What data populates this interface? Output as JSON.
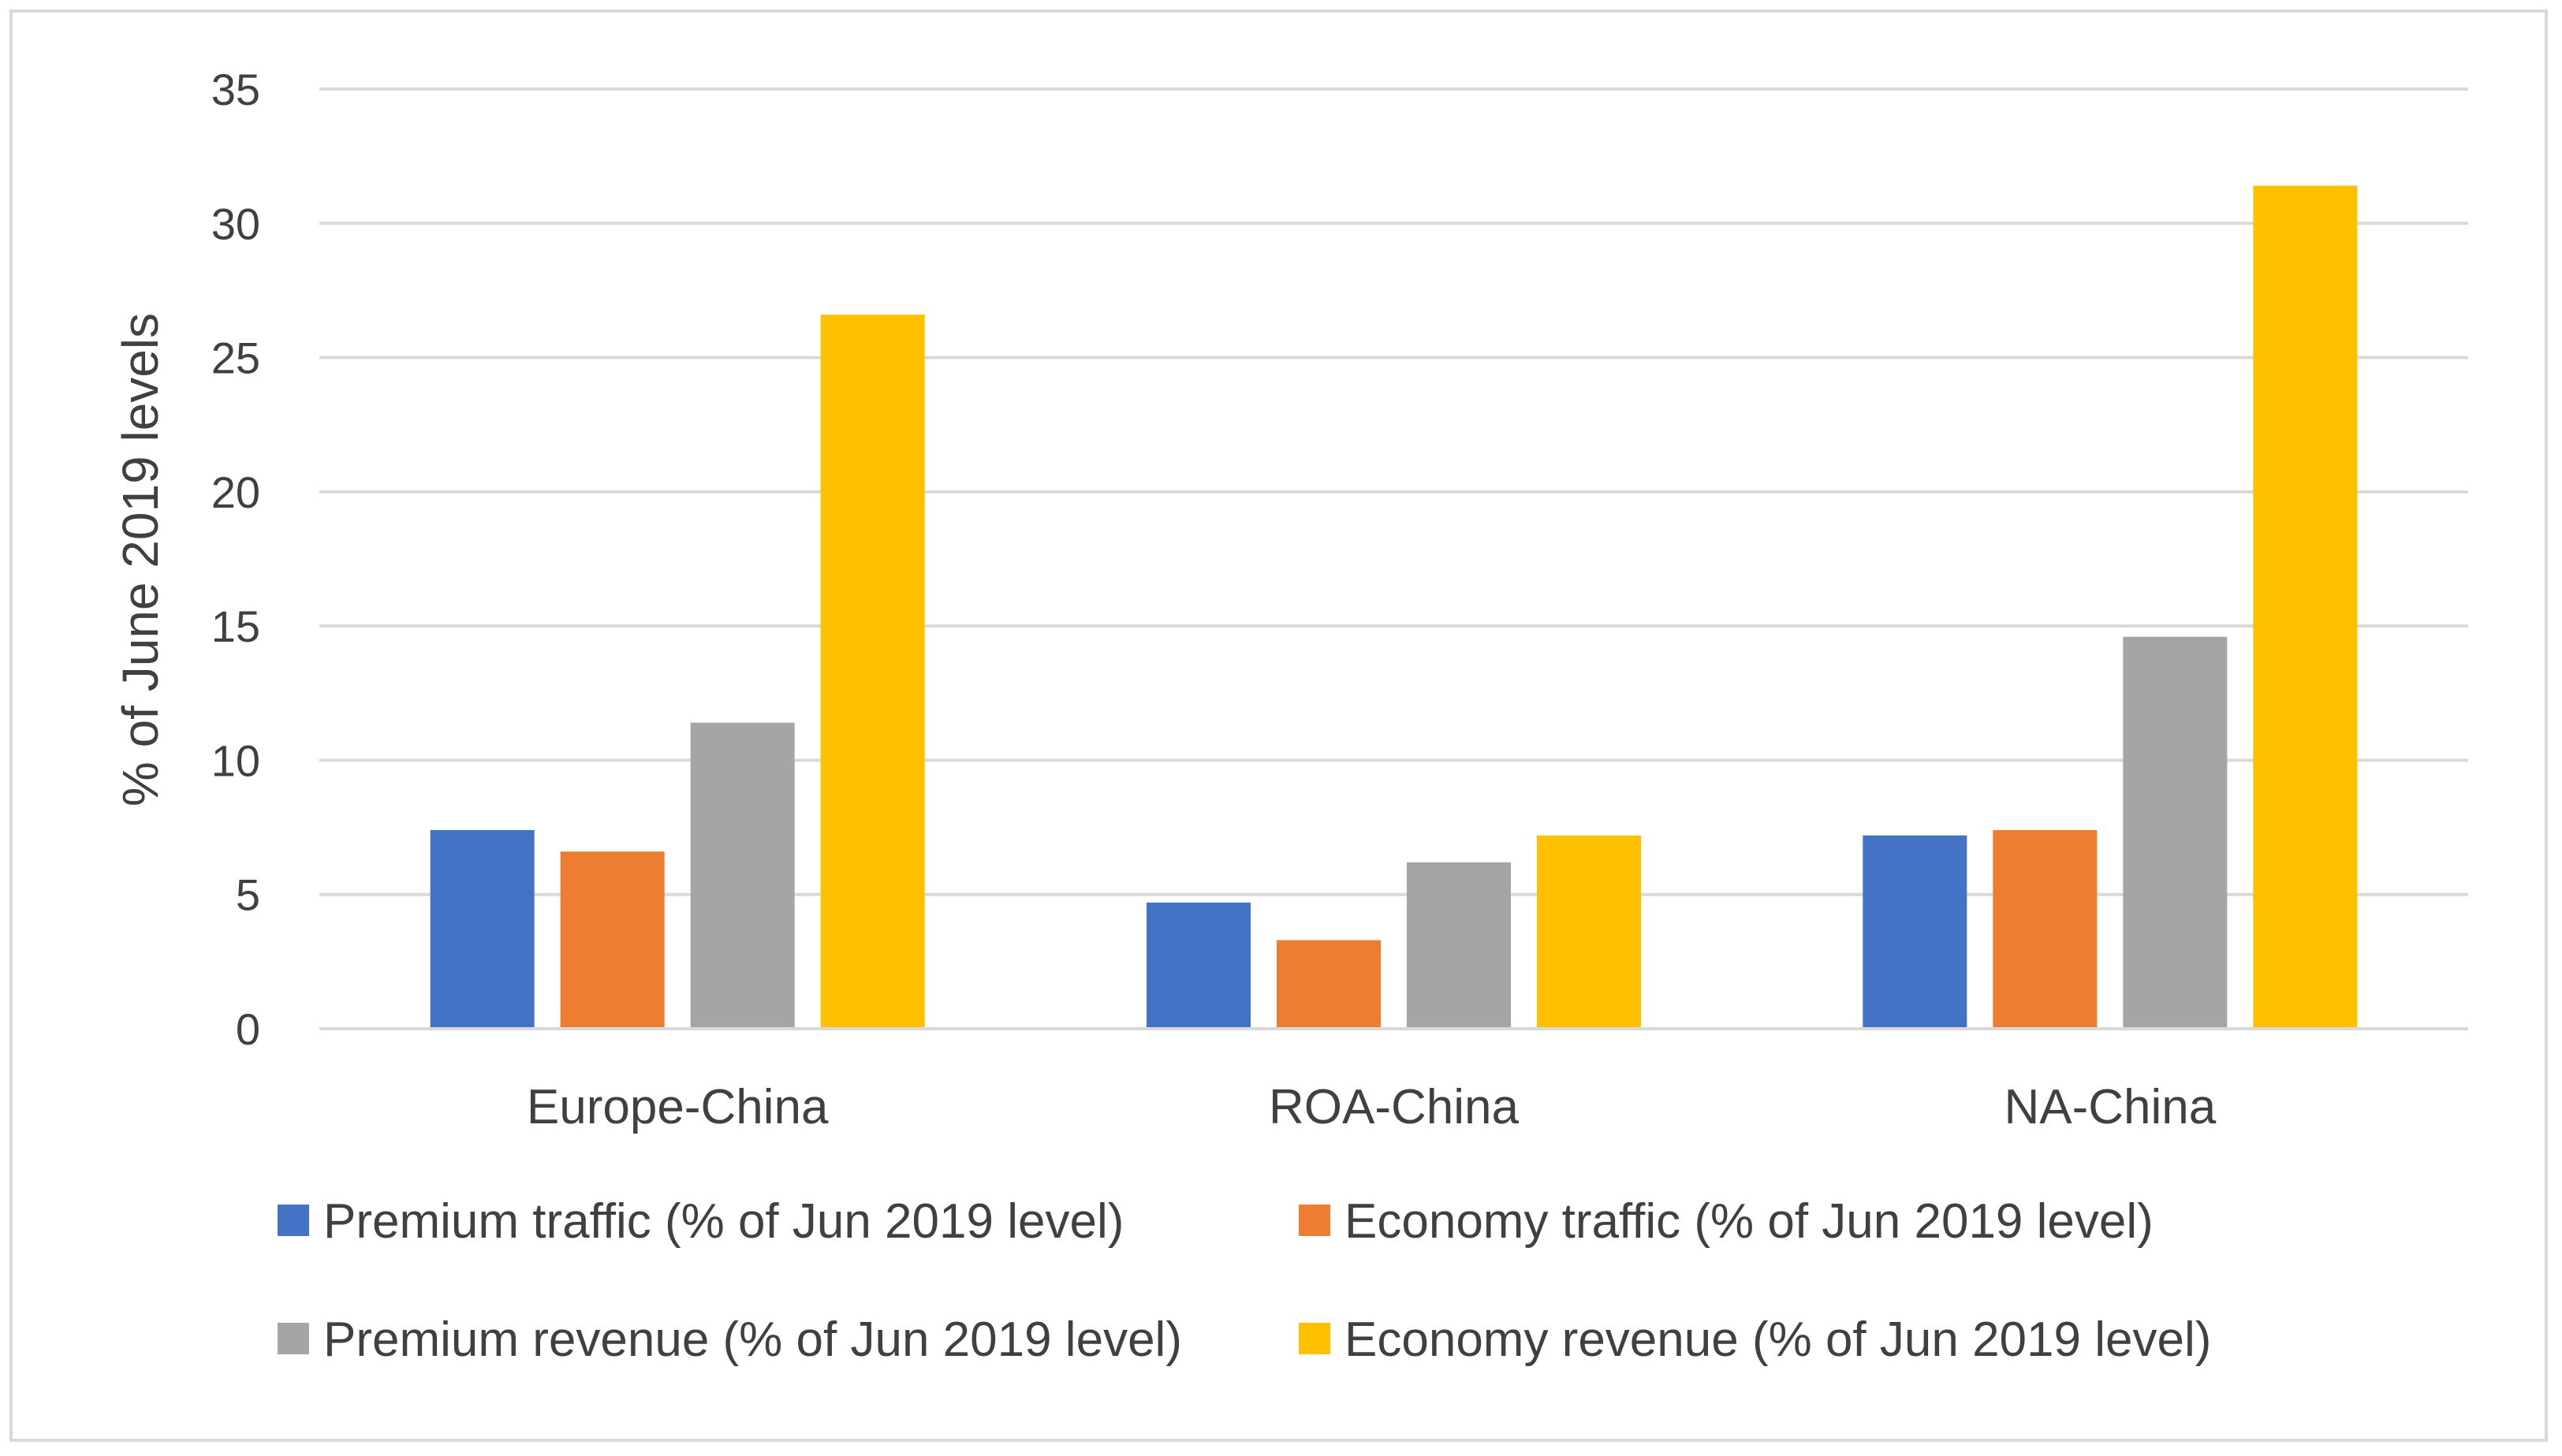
{
  "chart_data": {
    "type": "bar",
    "title": "",
    "xlabel": "",
    "ylabel": "% of June 2019 levels",
    "ylim": [
      0,
      35
    ],
    "yticks": [
      0,
      5,
      10,
      15,
      20,
      25,
      30,
      35
    ],
    "grid": true,
    "legend_position": "bottom",
    "categories": [
      "Europe-China",
      "ROA-China",
      "NA-China"
    ],
    "series": [
      {
        "name": "Premium traffic (% of Jun 2019 level)",
        "color": "#4472C4",
        "values": [
          7.4,
          4.7,
          7.2
        ]
      },
      {
        "name": "Economy traffic (% of Jun 2019 level)",
        "color": "#ED7D31",
        "values": [
          6.6,
          3.3,
          7.4
        ]
      },
      {
        "name": "Premium revenue (% of Jun 2019 level)",
        "color": "#A5A5A5",
        "values": [
          11.4,
          6.2,
          14.6
        ]
      },
      {
        "name": "Economy revenue (% of Jun 2019 level)",
        "color": "#FFC000",
        "values": [
          26.6,
          7.2,
          31.4
        ]
      }
    ],
    "colors": {
      "gridline": "#d9d9d9",
      "axis_text": "#404040",
      "frame": "#d9d9d9"
    }
  }
}
